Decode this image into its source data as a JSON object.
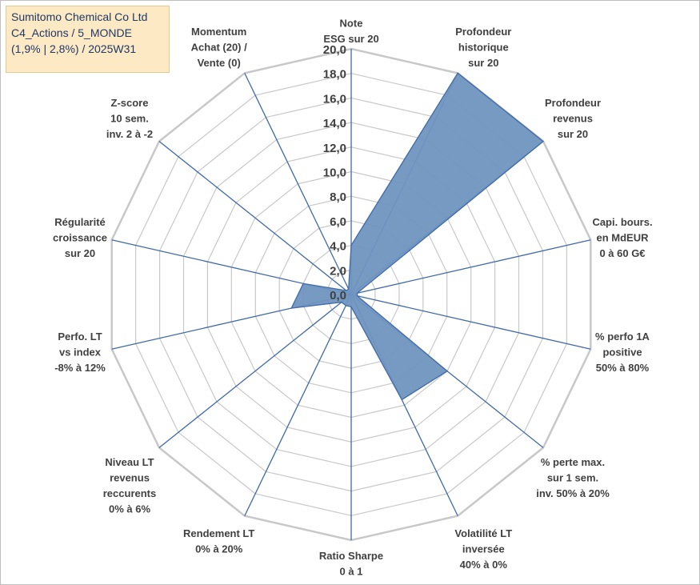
{
  "title_box": {
    "line1": "Sumitomo Chemical Co Ltd",
    "line2": "C4_Actions / 5_MONDE",
    "line3": "(1,9% | 2,8%) / 2025W31"
  },
  "chart_data": {
    "type": "radar",
    "rmax": 20,
    "ticks": [
      "0,0",
      "2,0",
      "4,0",
      "6,0",
      "8,0",
      "10,0",
      "12,0",
      "14,0",
      "16,0",
      "18,0",
      "20,0"
    ],
    "axes": [
      {
        "label": [
          "Note",
          "ESG sur 20"
        ],
        "value": 4.0
      },
      {
        "label": [
          "Profondeur",
          "historique",
          "sur 20"
        ],
        "value": 20.0
      },
      {
        "label": [
          "Profondeur",
          "revenus",
          "sur 20"
        ],
        "value": 20.0
      },
      {
        "label": [
          "Capi. bours.",
          "en MdEUR",
          "0 à 60 G€"
        ],
        "value": 0.5
      },
      {
        "label": [
          "% perfo 1A",
          "positive",
          "50% à 80%"
        ],
        "value": 0.5
      },
      {
        "label": [
          "% perte max.",
          "sur 1 sem.",
          "inv. 50% à 20%"
        ],
        "value": 10.0
      },
      {
        "label": [
          "Volatilité LT",
          "inversée",
          "40% à 0%"
        ],
        "value": 9.5
      },
      {
        "label": [
          "Ratio Sharpe",
          "0 à 1"
        ],
        "value": 1.0
      },
      {
        "label": [
          "Rendement LT",
          "0% à 20%"
        ],
        "value": 1.0
      },
      {
        "label": [
          "Niveau LT",
          "revenus",
          "reccurents",
          "0% à 6%"
        ],
        "value": 1.0
      },
      {
        "label": [
          "Perfo. LT",
          "vs index",
          "-8% à 12%"
        ],
        "value": 5.0
      },
      {
        "label": [
          "Régularité",
          "croissance",
          "sur 20"
        ],
        "value": 4.0
      },
      {
        "label": [
          "Z-score",
          "10 sem.",
          "inv. 2 à -2"
        ],
        "value": 0.5
      },
      {
        "label": [
          "Momentum",
          "Achat (20) /",
          "Vente (0)"
        ],
        "value": 0.5
      }
    ],
    "colors": {
      "fill": "#7095c0",
      "stroke": "#3f6aa8",
      "grid": "#c8c8c8",
      "spoke": "#3f6aa8"
    },
    "grid": true,
    "legend": "none"
  }
}
